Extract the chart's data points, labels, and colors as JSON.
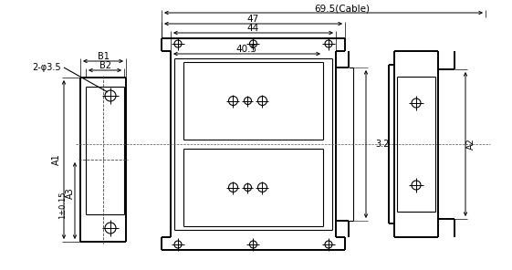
{
  "bg_color": "#ffffff",
  "line_color": "#000000",
  "fig_width": 5.61,
  "fig_height": 2.96,
  "dpi": 100,
  "labels": {
    "B1": "B1",
    "B2": "B2",
    "A1": "A1",
    "A2": "A2",
    "A3": "A3",
    "hole": "2-φ3.5",
    "tol": "1±0.15",
    "d69": "69.5(Cable)",
    "d47": "47",
    "d44": "44",
    "d40": "40.5",
    "d32": "3.2"
  }
}
